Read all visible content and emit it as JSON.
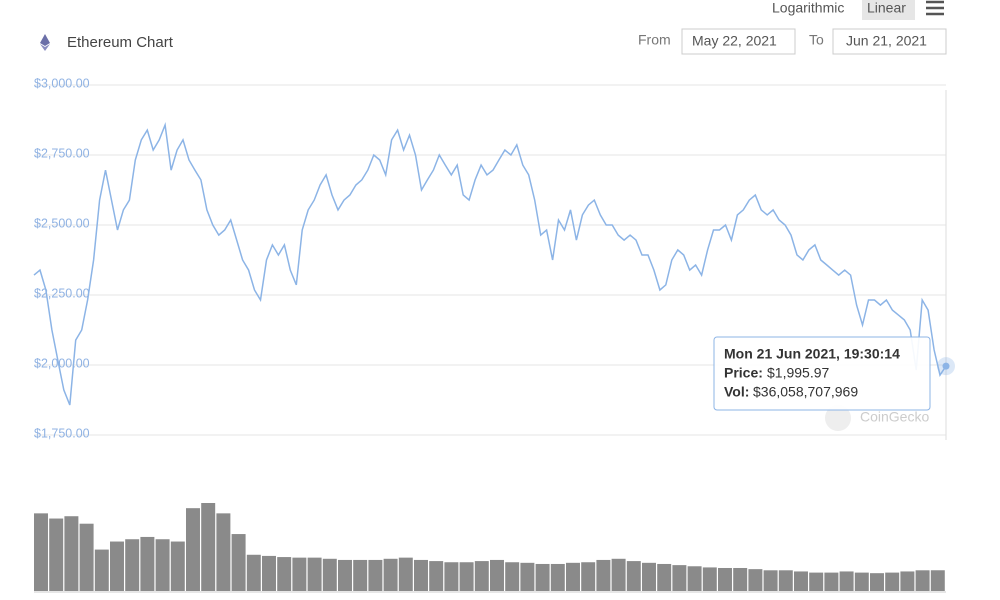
{
  "chart_data": {
    "type": "line",
    "title": "Ethereum Chart",
    "scale_buttons": [
      "Logarithmic",
      "Linear"
    ],
    "log_scale": false,
    "range": {
      "from_label": "From",
      "from": "May 22, 2021",
      "to_label": "To",
      "to": "Jun 21, 2021"
    },
    "ylim": [
      1750,
      3000
    ],
    "yticks": [
      {
        "value": 1750,
        "label": "$1,750.00"
      },
      {
        "value": 2000,
        "label": "$2,000.00"
      },
      {
        "value": 2250,
        "label": "$2,250.00"
      },
      {
        "value": 2500,
        "label": "$2,500.00"
      },
      {
        "value": 2750,
        "label": "$2,750.00"
      },
      {
        "value": 3000,
        "label": "$3,000.00"
      }
    ],
    "grid": true,
    "price": {
      "color": "#8cb4e6",
      "values": [
        2321,
        2339,
        2268,
        2125,
        2018,
        1911,
        1857,
        2089,
        2125,
        2232,
        2375,
        2589,
        2696,
        2589,
        2482,
        2554,
        2589,
        2732,
        2804,
        2839,
        2768,
        2804,
        2857,
        2696,
        2768,
        2804,
        2732,
        2696,
        2661,
        2554,
        2500,
        2464,
        2482,
        2518,
        2446,
        2375,
        2339,
        2268,
        2232,
        2375,
        2429,
        2393,
        2429,
        2339,
        2286,
        2482,
        2554,
        2589,
        2643,
        2679,
        2607,
        2554,
        2589,
        2607,
        2643,
        2661,
        2696,
        2750,
        2732,
        2679,
        2804,
        2839,
        2768,
        2821,
        2750,
        2625,
        2661,
        2696,
        2750,
        2714,
        2679,
        2714,
        2607,
        2589,
        2661,
        2714,
        2679,
        2696,
        2732,
        2768,
        2750,
        2786,
        2714,
        2679,
        2589,
        2464,
        2482,
        2375,
        2518,
        2482,
        2554,
        2446,
        2536,
        2571,
        2589,
        2536,
        2500,
        2500,
        2464,
        2446,
        2464,
        2446,
        2393,
        2393,
        2339,
        2268,
        2286,
        2375,
        2411,
        2393,
        2339,
        2357,
        2321,
        2411,
        2482,
        2482,
        2500,
        2446,
        2536,
        2554,
        2589,
        2607,
        2554,
        2536,
        2554,
        2518,
        2500,
        2464,
        2393,
        2375,
        2411,
        2429,
        2375,
        2357,
        2339,
        2321,
        2339,
        2321,
        2214,
        2143,
        2232,
        2232,
        2214,
        2232,
        2196,
        2179,
        2161,
        2125,
        1982,
        2232,
        2196,
        2054,
        1964,
        1995.97
      ]
    },
    "volume": {
      "color": "#8a8a8a",
      "values": [
        135000000000,
        126000000000,
        130000000000,
        117000000000,
        72000000000,
        86000000000,
        90000000000,
        94000000000,
        90000000000,
        86000000000,
        144000000000,
        153000000000,
        135000000000,
        99000000000,
        63000000000,
        61000000000,
        59000000000,
        58000000000,
        58000000000,
        56000000000,
        54000000000,
        54000000000,
        54000000000,
        56000000000,
        58000000000,
        54000000000,
        52000000000,
        50000000000,
        50000000000,
        52000000000,
        54000000000,
        50000000000,
        49000000000,
        47000000000,
        47000000000,
        49000000000,
        50000000000,
        54000000000,
        56000000000,
        52000000000,
        49000000000,
        47000000000,
        45000000000,
        43000000000,
        41000000000,
        40000000000,
        40000000000,
        38000000000,
        36000000000,
        36000000000,
        34000000000,
        32000000000,
        32000000000,
        34000000000,
        32000000000,
        31000000000,
        32000000000,
        34000000000,
        36000000000,
        36058707969
      ]
    },
    "tooltip": {
      "date": "Mon 21 Jun 2021, 19:30:14",
      "price_label": "Price:",
      "price": "$1,995.97",
      "volume_label": "Vol:",
      "volume": "$36,058,707,969"
    },
    "watermark": "CoinGecko"
  }
}
